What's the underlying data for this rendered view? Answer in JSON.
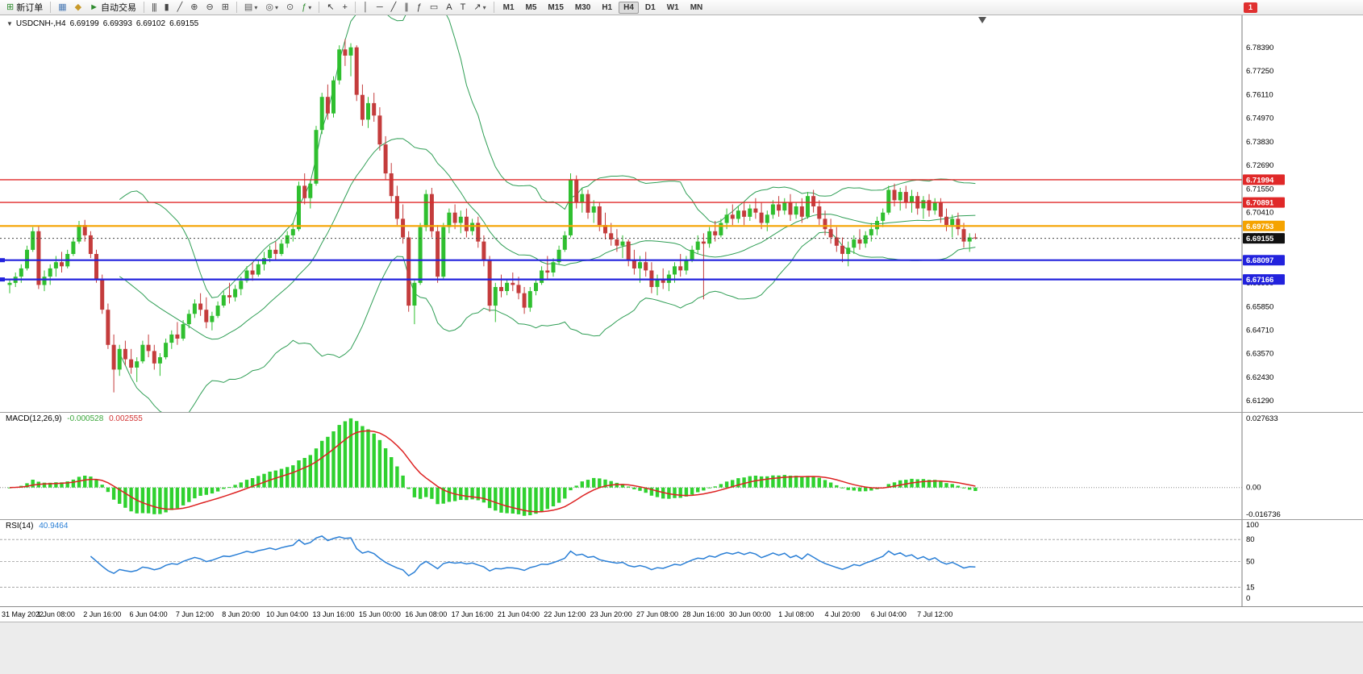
{
  "window": {
    "notification_count": "1"
  },
  "toolbar": {
    "buttons": [
      {
        "name": "new-order",
        "glyph": "⊞",
        "glyph_color": "#2e8b2e",
        "label": "新订单"
      },
      {
        "sep": true
      },
      {
        "name": "open-chart",
        "glyph": "▦",
        "glyph_color": "#4a7ab5"
      },
      {
        "name": "profiles",
        "glyph": "◆",
        "glyph_color": "#c8992a"
      },
      {
        "name": "autotrading",
        "glyph": "►",
        "glyph_color": "#2e8b2e",
        "label": "自动交易"
      },
      {
        "sep": true
      },
      {
        "name": "bar-chart",
        "glyph": "|||",
        "glyph_color": "#444"
      },
      {
        "name": "candlestick-chart",
        "glyph": "▮",
        "glyph_color": "#444"
      },
      {
        "name": "line-chart",
        "glyph": "╱",
        "glyph_color": "#444"
      },
      {
        "name": "zoom-in",
        "glyph": "⊕",
        "glyph_color": "#444"
      },
      {
        "name": "zoom-out",
        "glyph": "⊖",
        "glyph_color": "#444"
      },
      {
        "name": "tile-windows",
        "glyph": "⊞",
        "glyph_color": "#444"
      },
      {
        "sep": true
      },
      {
        "name": "new-chart",
        "glyph": "▤",
        "glyph_color": "#555",
        "dropdown": true
      },
      {
        "name": "chart-profiles",
        "glyph": "◎",
        "glyph_color": "#555",
        "dropdown": true
      },
      {
        "name": "time-periods",
        "glyph": "⊙",
        "glyph_color": "#555"
      },
      {
        "name": "indicators",
        "glyph": "ƒ",
        "glyph_color": "#2e8b2e",
        "dropdown": true
      },
      {
        "sep": true
      },
      {
        "name": "cursor",
        "glyph": "↖",
        "glyph_color": "#333"
      },
      {
        "name": "crosshair",
        "glyph": "+",
        "glyph_color": "#333"
      },
      {
        "sep": true
      },
      {
        "name": "vertical-line",
        "glyph": "│",
        "glyph_color": "#333"
      },
      {
        "name": "horizontal-line",
        "glyph": "─",
        "glyph_color": "#333"
      },
      {
        "name": "trendline",
        "glyph": "╱",
        "glyph_color": "#333"
      },
      {
        "name": "equidistant-channel",
        "glyph": "∥",
        "glyph_color": "#333"
      },
      {
        "name": "fibonacci",
        "glyph": "ƒ",
        "glyph_color": "#333"
      },
      {
        "name": "shapes",
        "glyph": "▭",
        "glyph_color": "#333"
      },
      {
        "name": "text",
        "glyph": "A",
        "glyph_color": "#333"
      },
      {
        "name": "text-label",
        "glyph": "T",
        "glyph_color": "#333"
      },
      {
        "name": "arrow-tools",
        "glyph": "↗",
        "glyph_color": "#333",
        "dropdown": true
      },
      {
        "sep": true
      }
    ],
    "timeframes": [
      "M1",
      "M5",
      "M15",
      "M30",
      "H1",
      "H4",
      "D1",
      "W1",
      "MN"
    ],
    "active_timeframe": "H4"
  },
  "chart": {
    "collapse_icon": "▼",
    "symbol_label": "USDCNH-,H4",
    "ohlc": {
      "open": "6.69199",
      "high": "6.69393",
      "low": "6.69102",
      "close": "6.69155"
    },
    "price_axis": [
      "6.78390",
      "6.77250",
      "6.76110",
      "6.74970",
      "6.73830",
      "6.72690",
      "6.71550",
      "6.70410",
      "6.69270",
      "6.68130",
      "6.66990",
      "6.65850",
      "6.64710",
      "6.63570",
      "6.62430",
      "6.61290"
    ],
    "levels": [
      {
        "label": "6.71994",
        "price": 6.71994,
        "color": "#e02828",
        "width": 1.4
      },
      {
        "label": "6.70891",
        "price": 6.70891,
        "color": "#e02828",
        "width": 1.4
      },
      {
        "label": "6.69753",
        "price": 6.69753,
        "color": "#f5a300",
        "width": 2.2
      },
      {
        "label": "6.68097",
        "price": 6.68097,
        "color": "#2222dd",
        "width": 2.2,
        "marker": true
      },
      {
        "label": "6.67166",
        "price": 6.67166,
        "color": "#2222dd",
        "width": 2.2,
        "marker": true
      }
    ],
    "current_price": {
      "label": "6.69155",
      "value": 6.69155,
      "color": "#111111"
    },
    "time_axis": [
      "31 May 2022",
      "1 Jun 08:00",
      "2 Jun 16:00",
      "6 Jun 04:00",
      "7 Jun 12:00",
      "8 Jun 20:00",
      "10 Jun 04:00",
      "13 Jun 16:00",
      "15 Jun 00:00",
      "16 Jun 08:00",
      "17 Jun 16:00",
      "21 Jun 04:00",
      "22 Jun 12:00",
      "23 Jun 20:00",
      "27 Jun 08:00",
      "28 Jun 16:00",
      "30 Jun 00:00",
      "1 Jul 08:00",
      "4 Jul 20:00",
      "6 Jul 04:00",
      "7 Jul 12:00"
    ]
  },
  "macd": {
    "label": "MACD(12,26,9)",
    "value_main": "-0.000528",
    "value_signal": "0.002555",
    "axis": [
      "0.027633",
      "0.00",
      "-0.016736"
    ],
    "params": {
      "fast": 12,
      "slow": 26,
      "signal": 9
    },
    "colors": {
      "histogram": "#2fd12f",
      "signal": "#dd2222"
    }
  },
  "rsi": {
    "label": "RSI(14)",
    "value": "40.9464",
    "period": 14,
    "axis": [
      "100",
      "80",
      "50",
      "15",
      "0"
    ],
    "levels": [
      80,
      50,
      15
    ],
    "color": "#2a7fd6"
  },
  "chart_data": {
    "type": "candlestick",
    "symbol": "USDCNH-",
    "timeframe": "H4",
    "price_min": 6.6129,
    "price_max": 6.7839,
    "bollinger": {
      "period": 20,
      "deviation": 2,
      "color": "#2f9e55"
    },
    "colors": {
      "up": "#2fbf2f",
      "down": "#c43c3c"
    },
    "candles": [
      [
        6.669,
        6.672,
        6.665,
        6.67
      ],
      [
        6.67,
        6.675,
        6.668,
        6.673
      ],
      [
        6.673,
        6.679,
        6.67,
        6.677
      ],
      [
        6.677,
        6.688,
        6.676,
        6.686
      ],
      [
        6.686,
        6.697,
        6.685,
        6.695
      ],
      [
        6.695,
        6.6975,
        6.667,
        6.669
      ],
      [
        6.669,
        6.676,
        6.666,
        6.673
      ],
      [
        6.673,
        6.679,
        6.669,
        6.677
      ],
      [
        6.677,
        6.683,
        6.673,
        6.68
      ],
      [
        6.68,
        6.685,
        6.675,
        6.678
      ],
      [
        6.678,
        6.686,
        6.677,
        6.684
      ],
      [
        6.684,
        6.692,
        6.683,
        6.69
      ],
      [
        6.69,
        6.7,
        6.689,
        6.698
      ],
      [
        6.698,
        6.7005,
        6.69,
        6.693
      ],
      [
        6.693,
        6.695,
        6.682,
        6.684
      ],
      [
        6.684,
        6.686,
        6.67,
        6.672
      ],
      [
        6.672,
        6.674,
        6.655,
        6.657
      ],
      [
        6.657,
        6.66,
        6.638,
        6.64
      ],
      [
        6.64,
        6.645,
        6.617,
        6.628
      ],
      [
        6.628,
        6.64,
        6.625,
        6.638
      ],
      [
        6.638,
        6.642,
        6.63,
        6.633
      ],
      [
        6.633,
        6.638,
        6.626,
        6.629
      ],
      [
        6.629,
        6.634,
        6.622,
        6.632
      ],
      [
        6.632,
        6.642,
        6.631,
        6.64
      ],
      [
        6.64,
        6.645,
        6.634,
        6.637
      ],
      [
        6.637,
        6.64,
        6.628,
        6.631
      ],
      [
        6.631,
        6.636,
        6.625,
        6.634
      ],
      [
        6.634,
        6.643,
        6.633,
        6.641
      ],
      [
        6.641,
        6.647,
        6.638,
        6.645
      ],
      [
        6.645,
        6.651,
        6.64,
        6.643
      ],
      [
        6.643,
        6.652,
        6.642,
        6.65
      ],
      [
        6.65,
        6.657,
        6.648,
        6.655
      ],
      [
        6.655,
        6.662,
        6.653,
        6.66
      ],
      [
        6.66,
        6.665,
        6.654,
        6.657
      ],
      [
        6.657,
        6.663,
        6.648,
        6.651
      ],
      [
        6.651,
        6.656,
        6.647,
        6.654
      ],
      [
        6.654,
        6.661,
        6.653,
        6.659
      ],
      [
        6.659,
        6.666,
        6.658,
        6.664
      ],
      [
        6.664,
        6.67,
        6.66,
        6.663
      ],
      [
        6.663,
        6.669,
        6.661,
        6.667
      ],
      [
        6.667,
        6.673,
        6.664,
        6.671
      ],
      [
        6.671,
        6.678,
        6.67,
        6.676
      ],
      [
        6.676,
        6.68,
        6.671,
        6.674
      ],
      [
        6.674,
        6.681,
        6.673,
        6.679
      ],
      [
        6.679,
        6.685,
        6.676,
        6.682
      ],
      [
        6.682,
        6.688,
        6.68,
        6.686
      ],
      [
        6.686,
        6.69,
        6.681,
        6.684
      ],
      [
        6.684,
        6.691,
        6.683,
        6.689
      ],
      [
        6.689,
        6.695,
        6.687,
        6.693
      ],
      [
        6.693,
        6.699,
        6.69,
        6.696
      ],
      [
        6.696,
        6.719,
        6.695,
        6.717
      ],
      [
        6.717,
        6.723,
        6.708,
        6.711
      ],
      [
        6.711,
        6.72,
        6.706,
        6.718
      ],
      [
        6.718,
        6.746,
        6.717,
        6.744
      ],
      [
        6.744,
        6.762,
        6.742,
        6.76
      ],
      [
        6.76,
        6.766,
        6.749,
        6.752
      ],
      [
        6.752,
        6.77,
        6.75,
        6.768
      ],
      [
        6.768,
        6.785,
        6.766,
        6.783
      ],
      [
        6.783,
        6.788,
        6.775,
        6.78
      ],
      [
        6.78,
        6.786,
        6.77,
        6.784
      ],
      [
        6.784,
        6.785,
        6.758,
        6.761
      ],
      [
        6.761,
        6.766,
        6.746,
        6.749
      ],
      [
        6.749,
        6.76,
        6.745,
        6.757
      ],
      [
        6.757,
        6.762,
        6.748,
        6.751
      ],
      [
        6.751,
        6.755,
        6.734,
        6.737
      ],
      [
        6.737,
        6.741,
        6.72,
        6.723
      ],
      [
        6.723,
        6.728,
        6.709,
        6.712
      ],
      [
        6.712,
        6.717,
        6.698,
        6.701
      ],
      [
        6.701,
        6.708,
        6.689,
        6.692
      ],
      [
        6.692,
        6.695,
        6.656,
        6.659
      ],
      [
        6.659,
        6.672,
        6.65,
        6.67
      ],
      [
        6.67,
        6.699,
        6.669,
        6.697
      ],
      [
        6.697,
        6.715,
        6.695,
        6.713
      ],
      [
        6.713,
        6.716,
        6.692,
        6.695
      ],
      [
        6.695,
        6.698,
        6.67,
        6.673
      ],
      [
        6.673,
        6.699,
        6.672,
        6.697
      ],
      [
        6.697,
        6.706,
        6.694,
        6.704
      ],
      [
        6.704,
        6.708,
        6.696,
        6.699
      ],
      [
        6.699,
        6.705,
        6.694,
        6.702
      ],
      [
        6.702,
        6.706,
        6.692,
        6.695
      ],
      [
        6.695,
        6.701,
        6.693,
        6.699
      ],
      [
        6.699,
        6.702,
        6.687,
        6.69
      ],
      [
        6.69,
        6.693,
        6.678,
        6.681
      ],
      [
        6.681,
        6.683,
        6.656,
        6.659
      ],
      [
        6.659,
        6.67,
        6.651,
        6.668
      ],
      [
        6.668,
        6.674,
        6.663,
        6.666
      ],
      [
        6.666,
        6.672,
        6.664,
        6.67
      ],
      [
        6.67,
        6.675,
        6.666,
        6.669
      ],
      [
        6.669,
        6.673,
        6.662,
        6.665
      ],
      [
        6.665,
        6.668,
        6.655,
        6.658
      ],
      [
        6.658,
        6.668,
        6.656,
        6.666
      ],
      [
        6.666,
        6.672,
        6.664,
        6.67
      ],
      [
        6.67,
        6.678,
        6.669,
        6.676
      ],
      [
        6.676,
        6.683,
        6.672,
        6.675
      ],
      [
        6.675,
        6.682,
        6.673,
        6.68
      ],
      [
        6.68,
        6.688,
        6.679,
        6.686
      ],
      [
        6.686,
        6.695,
        6.685,
        6.693
      ],
      [
        6.693,
        6.723,
        6.692,
        6.72
      ],
      [
        6.72,
        6.722,
        6.706,
        6.709
      ],
      [
        6.709,
        6.716,
        6.704,
        6.713
      ],
      [
        6.713,
        6.715,
        6.701,
        6.704
      ],
      [
        6.704,
        6.71,
        6.699,
        6.707
      ],
      [
        6.707,
        6.709,
        6.695,
        6.698
      ],
      [
        6.698,
        6.704,
        6.691,
        6.694
      ],
      [
        6.694,
        6.699,
        6.688,
        6.691
      ],
      [
        6.691,
        6.696,
        6.685,
        6.688
      ],
      [
        6.688,
        6.693,
        6.682,
        6.69
      ],
      [
        6.69,
        6.691,
        6.678,
        6.681
      ],
      [
        6.681,
        6.686,
        6.674,
        6.677
      ],
      [
        6.677,
        6.683,
        6.67,
        6.68
      ],
      [
        6.68,
        6.685,
        6.673,
        6.676
      ],
      [
        6.676,
        6.68,
        6.665,
        6.668
      ],
      [
        6.668,
        6.674,
        6.664,
        6.672
      ],
      [
        6.672,
        6.677,
        6.667,
        6.67
      ],
      [
        6.67,
        6.676,
        6.666,
        6.674
      ],
      [
        6.674,
        6.68,
        6.67,
        6.678
      ],
      [
        6.678,
        6.684,
        6.673,
        6.676
      ],
      [
        6.676,
        6.683,
        6.674,
        6.681
      ],
      [
        6.681,
        6.688,
        6.68,
        6.686
      ],
      [
        6.686,
        6.693,
        6.684,
        6.69
      ],
      [
        6.69,
        6.694,
        6.662,
        6.689
      ],
      [
        6.689,
        6.697,
        6.687,
        6.695
      ],
      [
        6.695,
        6.7,
        6.69,
        6.693
      ],
      [
        6.693,
        6.701,
        6.692,
        6.699
      ],
      [
        6.699,
        6.706,
        6.696,
        6.703
      ],
      [
        6.703,
        6.708,
        6.698,
        6.701
      ],
      [
        6.701,
        6.707,
        6.699,
        6.705
      ],
      [
        6.705,
        6.709,
        6.698,
        6.702
      ],
      [
        6.702,
        6.708,
        6.7,
        6.706
      ],
      [
        6.706,
        6.711,
        6.701,
        6.704
      ],
      [
        6.704,
        6.709,
        6.696,
        6.699
      ],
      [
        6.699,
        6.705,
        6.695,
        6.703
      ],
      [
        6.703,
        6.71,
        6.701,
        6.708
      ],
      [
        6.708,
        6.712,
        6.702,
        6.705
      ],
      [
        6.705,
        6.711,
        6.703,
        6.709
      ],
      [
        6.709,
        6.713,
        6.7,
        6.703
      ],
      [
        6.703,
        6.709,
        6.701,
        6.707
      ],
      [
        6.707,
        6.711,
        6.699,
        6.702
      ],
      [
        6.702,
        6.714,
        6.701,
        6.712
      ],
      [
        6.712,
        6.715,
        6.704,
        6.707
      ],
      [
        6.707,
        6.71,
        6.698,
        6.701
      ],
      [
        6.701,
        6.705,
        6.693,
        6.696
      ],
      [
        6.696,
        6.701,
        6.689,
        6.692
      ],
      [
        6.692,
        6.697,
        6.685,
        6.688
      ],
      [
        6.688,
        6.692,
        6.68,
        6.684
      ],
      [
        6.684,
        6.69,
        6.678,
        6.687
      ],
      [
        6.687,
        6.693,
        6.684,
        6.691
      ],
      [
        6.691,
        6.696,
        6.686,
        6.689
      ],
      [
        6.689,
        6.695,
        6.687,
        6.693
      ],
      [
        6.693,
        6.699,
        6.69,
        6.696
      ],
      [
        6.696,
        6.702,
        6.693,
        6.7
      ],
      [
        6.7,
        6.706,
        6.697,
        6.704
      ],
      [
        6.704,
        6.717,
        6.703,
        6.715
      ],
      [
        6.715,
        6.718,
        6.707,
        6.71
      ],
      [
        6.71,
        6.716,
        6.705,
        6.714
      ],
      [
        6.714,
        6.717,
        6.706,
        6.709
      ],
      [
        6.709,
        6.715,
        6.704,
        6.712
      ],
      [
        6.712,
        6.714,
        6.703,
        6.706
      ],
      [
        6.706,
        6.712,
        6.701,
        6.71
      ],
      [
        6.71,
        6.713,
        6.702,
        6.705
      ],
      [
        6.705,
        6.711,
        6.703,
        6.709
      ],
      [
        6.709,
        6.711,
        6.699,
        6.702
      ],
      [
        6.702,
        6.706,
        6.695,
        6.698
      ],
      [
        6.698,
        6.703,
        6.692,
        6.701
      ],
      [
        6.701,
        6.704,
        6.693,
        6.696
      ],
      [
        6.696,
        6.699,
        6.687,
        6.69
      ],
      [
        6.69,
        6.694,
        6.685,
        6.692
      ],
      [
        6.69199,
        6.69393,
        6.69102,
        6.69155
      ]
    ]
  }
}
